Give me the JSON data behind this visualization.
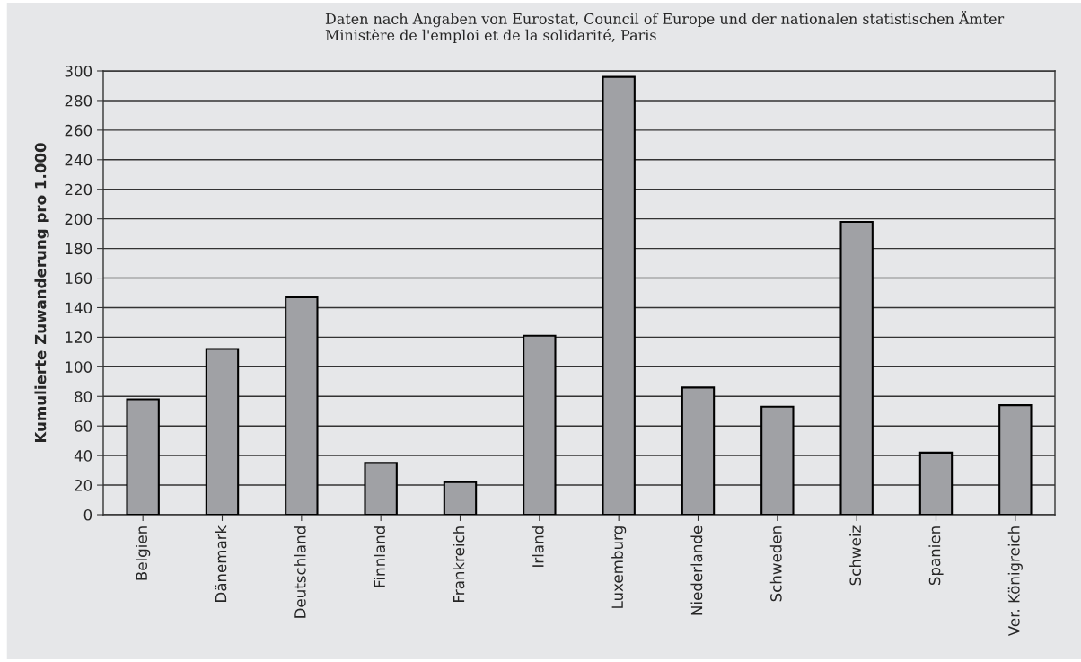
{
  "chart_data": {
    "type": "bar",
    "ylabel": "Kumulierte Zuwanderung pro 1.000",
    "annotations": [
      "Daten nach Angaben von Eurostat, Council of Europe und der nationalen statistischen Ämter",
      "Ministère de l'emploi et de la solidarité, Paris"
    ],
    "categories": [
      "Belgien",
      "Dänemark",
      "Deutschland",
      "Finnland",
      "Frankreich",
      "Irland",
      "Luxemburg",
      "Niederlande",
      "Schweden",
      "Schweiz",
      "Spanien",
      "Ver. Königreich"
    ],
    "values": [
      78,
      112,
      147,
      35,
      22,
      121,
      296,
      86,
      73,
      198,
      42,
      74
    ],
    "color": "#a0a1a5",
    "ylim": [
      0,
      300
    ],
    "yticks": [
      0,
      20,
      40,
      60,
      80,
      100,
      120,
      140,
      160,
      180,
      200,
      220,
      240,
      260,
      280,
      300
    ],
    "grid": "y"
  }
}
